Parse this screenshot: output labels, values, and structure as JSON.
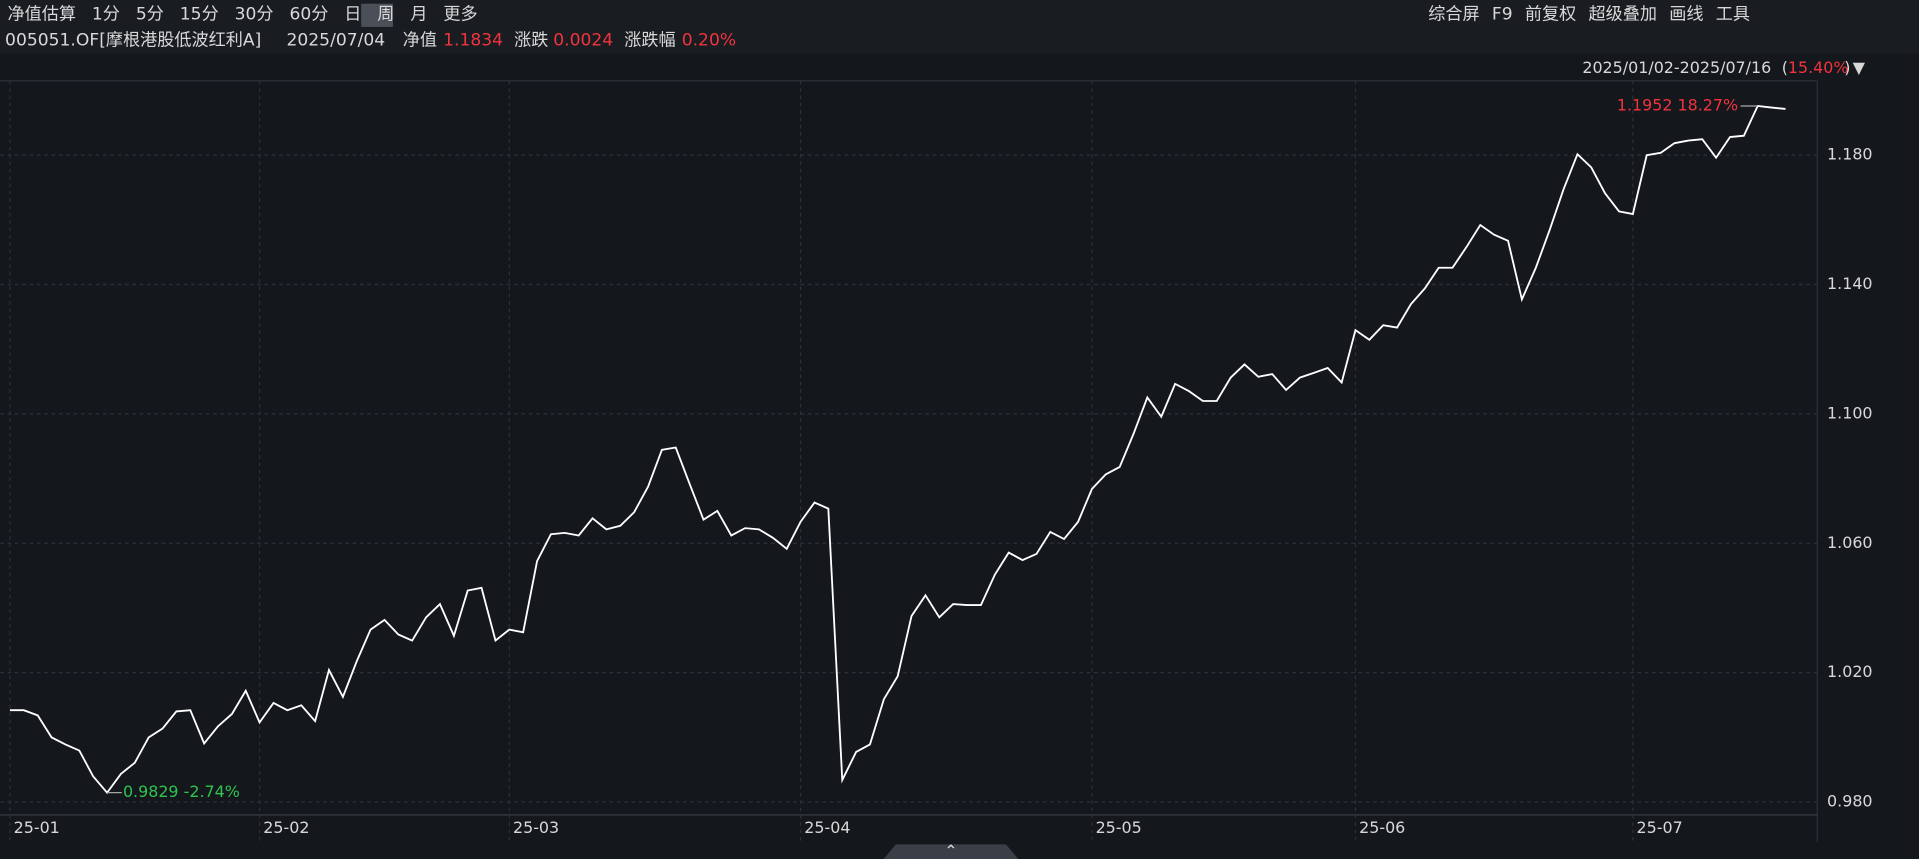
{
  "toolbar": {
    "tabs": [
      "净值估算",
      "1分",
      "5分",
      "15分",
      "30分",
      "60分",
      "日",
      "周",
      "月",
      "更多"
    ],
    "tools": [
      "综合屏",
      "F9",
      "前复权",
      "超级叠加",
      "画线",
      "工具"
    ]
  },
  "info": {
    "fund": "005051.OF[摩根港股低波红利A]",
    "date": "2025/07/04",
    "nav_label": "净值",
    "nav": "1.1834",
    "change_label": "涨跌",
    "change": "0.0024",
    "pct_label": "涨跌幅",
    "pct": "0.20%",
    "range": "2025/01/02-2025/07/16",
    "range_change": "15.40%"
  },
  "chart_data": {
    "type": "line",
    "color": "#ffffff",
    "grid": true,
    "max_label": "1.1952 18.27%",
    "min_label": "0.9829 -2.74%",
    "categories": [
      "25-01",
      null,
      null,
      null,
      null,
      null,
      null,
      null,
      null,
      null,
      null,
      null,
      null,
      null,
      null,
      null,
      null,
      null,
      "25-02",
      null,
      null,
      null,
      null,
      null,
      null,
      null,
      null,
      null,
      null,
      null,
      null,
      null,
      null,
      null,
      null,
      null,
      "25-03",
      null,
      null,
      null,
      null,
      null,
      null,
      null,
      null,
      null,
      null,
      null,
      null,
      null,
      null,
      null,
      null,
      null,
      null,
      null,
      null,
      "25-04",
      null,
      null,
      null,
      null,
      null,
      null,
      null,
      null,
      null,
      null,
      null,
      null,
      null,
      null,
      null,
      null,
      null,
      null,
      null,
      null,
      "25-05",
      null,
      null,
      null,
      null,
      null,
      null,
      null,
      null,
      null,
      null,
      null,
      null,
      null,
      null,
      null,
      null,
      null,
      null,
      "25-06",
      null,
      null,
      null,
      null,
      null,
      null,
      null,
      null,
      null,
      null,
      null,
      null,
      null,
      null,
      null,
      null,
      null,
      null,
      null,
      "25-07",
      null,
      null,
      null,
      null,
      null,
      null,
      null,
      null,
      null,
      null,
      null
    ],
    "values": [
      1.0084,
      1.0084,
      1.0068,
      1.0,
      0.9978,
      0.9959,
      0.9879,
      0.9829,
      0.9887,
      0.9921,
      1.0,
      1.0027,
      1.008,
      1.0084,
      0.9981,
      1.0034,
      1.0072,
      1.0144,
      1.0046,
      1.0106,
      1.0084,
      1.0099,
      1.005,
      1.0208,
      1.0125,
      1.0235,
      1.0333,
      1.0363,
      1.0318,
      1.0299,
      1.0371,
      1.0412,
      1.0314,
      1.0454,
      1.0462,
      1.0299,
      1.0333,
      1.0325,
      1.0545,
      1.0628,
      1.0632,
      1.0624,
      1.0677,
      1.0643,
      1.0654,
      1.0696,
      1.0775,
      1.0889,
      1.0896,
      1.0783,
      1.0673,
      1.07,
      1.0624,
      1.0647,
      1.0643,
      1.0617,
      1.0583,
      1.0666,
      1.0726,
      1.0707,
      0.9868,
      0.9955,
      0.9978,
      1.0118,
      1.0189,
      1.0375,
      1.0439,
      1.0371,
      1.0412,
      1.0409,
      1.0409,
      1.0503,
      1.0571,
      1.0548,
      1.0567,
      1.0635,
      1.0613,
      1.0666,
      1.0768,
      1.0813,
      1.0836,
      1.0938,
      1.1051,
      1.0991,
      1.1093,
      1.107,
      1.104,
      1.104,
      1.1112,
      1.1153,
      1.1115,
      1.1123,
      1.1074,
      1.1112,
      1.1127,
      1.1142,
      1.1097,
      1.1259,
      1.1229,
      1.1274,
      1.1267,
      1.1339,
      1.1388,
      1.1452,
      1.1452,
      1.1516,
      1.1584,
      1.1554,
      1.1535,
      1.1354,
      1.1452,
      1.1569,
      1.1694,
      1.1803,
      1.1762,
      1.1682,
      1.1626,
      1.1618,
      1.18,
      1.1807,
      1.1837,
      1.1845,
      1.1849,
      1.1792,
      1.1856,
      1.186,
      1.1952,
      1.1947,
      1.1943
    ],
    "ylim": [
      0.976,
      1.203
    ],
    "yticks": [
      {
        "value": 0.98,
        "label": "0.980"
      },
      {
        "value": 1.02,
        "label": "1.020"
      },
      {
        "value": 1.06,
        "label": "1.060"
      },
      {
        "value": 1.1,
        "label": "1.100"
      },
      {
        "value": 1.14,
        "label": "1.140"
      },
      {
        "value": 1.18,
        "label": "1.180"
      }
    ]
  }
}
